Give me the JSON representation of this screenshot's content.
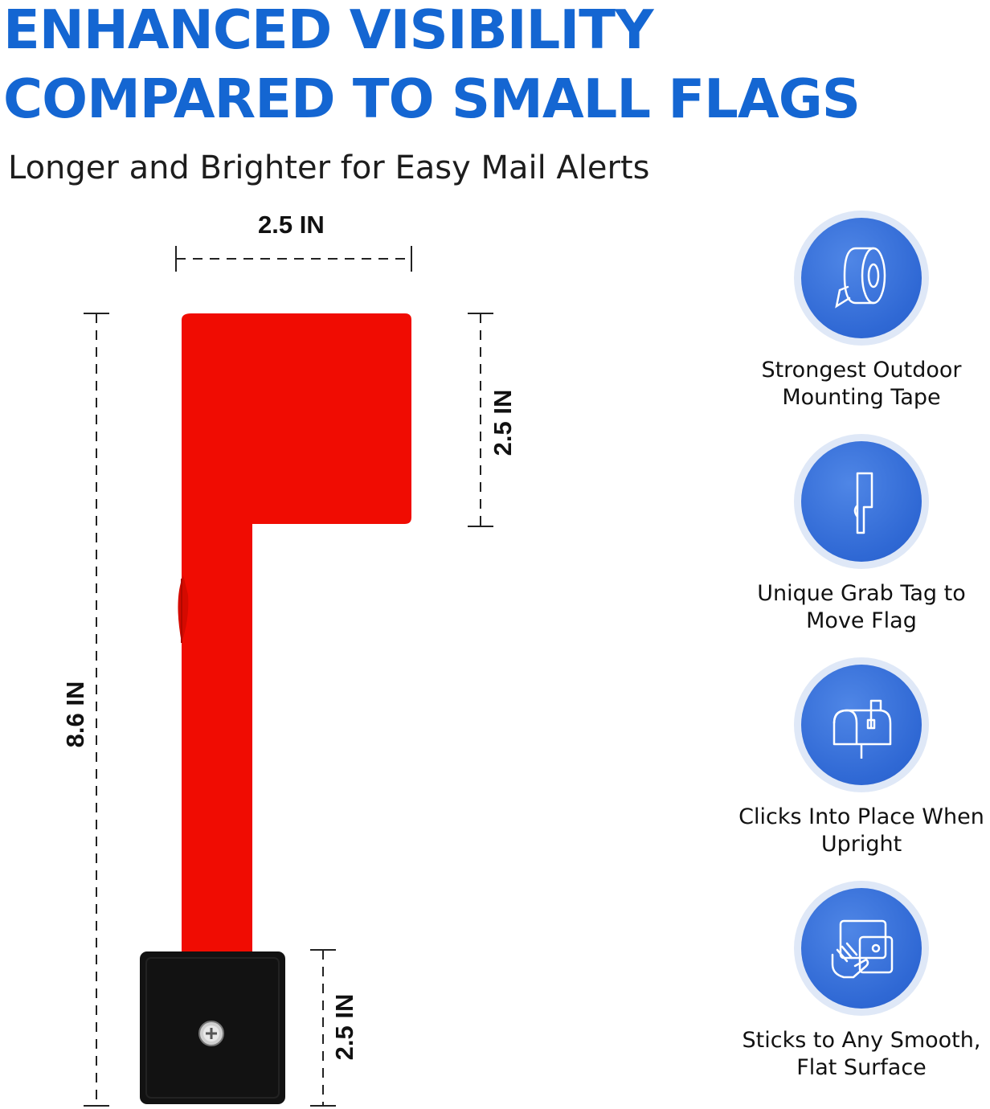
{
  "header": {
    "title_line1": "ENHANCED VISIBILITY",
    "title_line2": "COMPARED TO SMALL FLAGS",
    "subtitle": "Longer and Brighter for Easy Mail Alerts"
  },
  "dimensions": {
    "top_width": "2.5 IN",
    "flag_height": "2.5 IN",
    "total_height": "8.6 IN",
    "base_height": "2.5 IN"
  },
  "features": [
    {
      "icon": "tape-roll-icon",
      "line1": "Strongest Outdoor",
      "line2": "Mounting Tape"
    },
    {
      "icon": "grab-tag-flag-icon",
      "line1": "Unique Grab Tag to",
      "line2": "Move Flag"
    },
    {
      "icon": "mailbox-icon",
      "line1": "Clicks Into Place When",
      "line2": "Upright"
    },
    {
      "icon": "hand-surface-icon",
      "line1": "Sticks to Any Smooth,",
      "line2": "Flat Surface"
    }
  ],
  "colors": {
    "headline": "#1466d2",
    "flag": "#f00c02",
    "base": "#121212",
    "icon_disc": "#2f68d4"
  }
}
